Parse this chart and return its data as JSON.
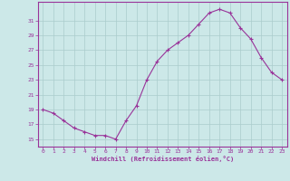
{
  "x": [
    0,
    1,
    2,
    3,
    4,
    5,
    6,
    7,
    8,
    9,
    10,
    11,
    12,
    13,
    14,
    15,
    16,
    17,
    18,
    19,
    20,
    21,
    22,
    23
  ],
  "y": [
    19,
    18.5,
    17.5,
    16.5,
    16,
    15.5,
    15.5,
    15,
    17.5,
    19.5,
    23,
    25.5,
    27,
    28,
    29,
    30.5,
    32,
    32.5,
    32,
    30,
    28.5,
    26,
    24,
    23
  ],
  "line_color": "#993399",
  "marker": "+",
  "marker_size": 3,
  "marker_color": "#993399",
  "bg_color": "#cce8e8",
  "grid_color": "#aacccc",
  "tick_color": "#993399",
  "label_color": "#993399",
  "xlabel": "Windchill (Refroidissement éolien,°C)",
  "yticks": [
    15,
    17,
    19,
    21,
    23,
    25,
    27,
    29,
    31
  ],
  "xticks": [
    0,
    1,
    2,
    3,
    4,
    5,
    6,
    7,
    8,
    9,
    10,
    11,
    12,
    13,
    14,
    15,
    16,
    17,
    18,
    19,
    20,
    21,
    22,
    23
  ],
  "xlim": [
    -0.5,
    23.5
  ],
  "ylim": [
    14.0,
    33.5
  ]
}
